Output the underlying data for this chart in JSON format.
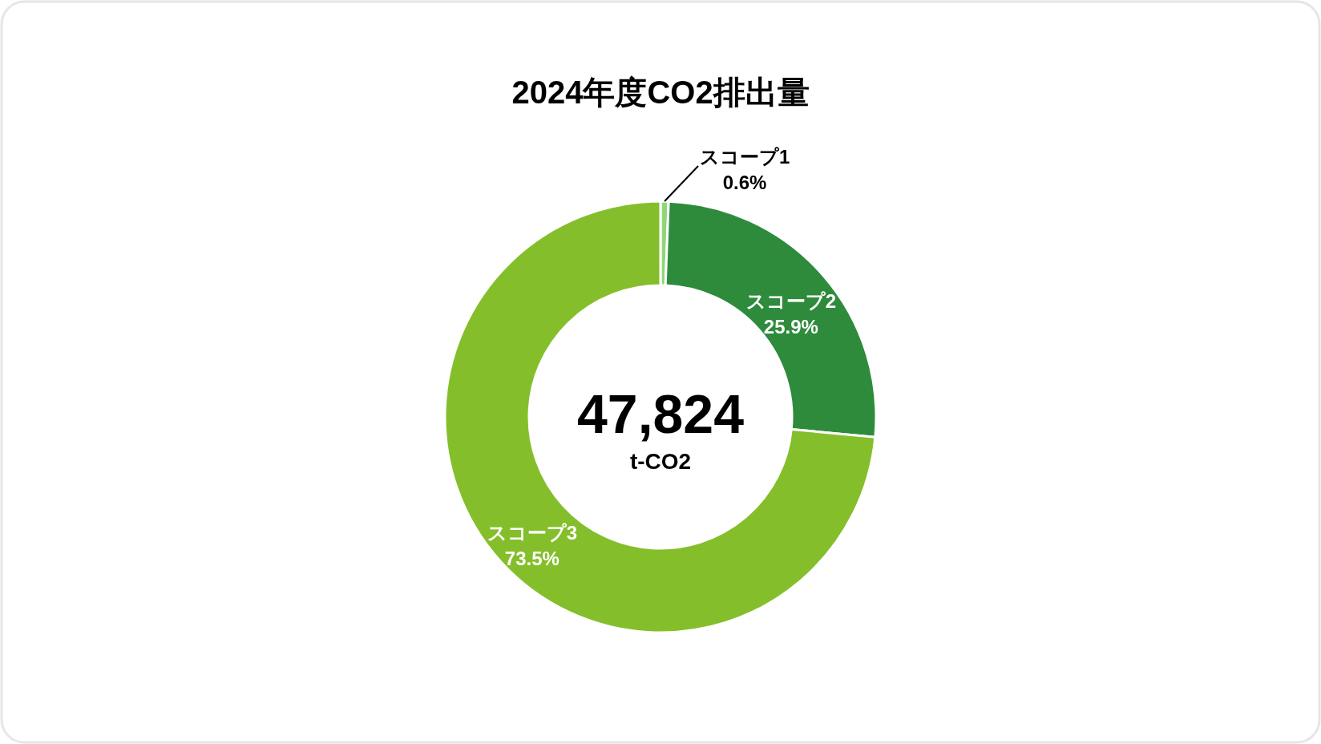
{
  "chart_data": {
    "type": "donut",
    "title": "2024年度CO2排出量",
    "categories": [
      "スコープ1",
      "スコープ2",
      "スコープ3"
    ],
    "values": [
      0.6,
      25.9,
      73.5
    ],
    "value_labels": [
      "0.6%",
      "25.9%",
      "73.5%"
    ],
    "colors": [
      "#8fd57a",
      "#2e8b3c",
      "#84bf2b"
    ],
    "annotations": [
      "47,824",
      "t-CO2"
    ]
  }
}
